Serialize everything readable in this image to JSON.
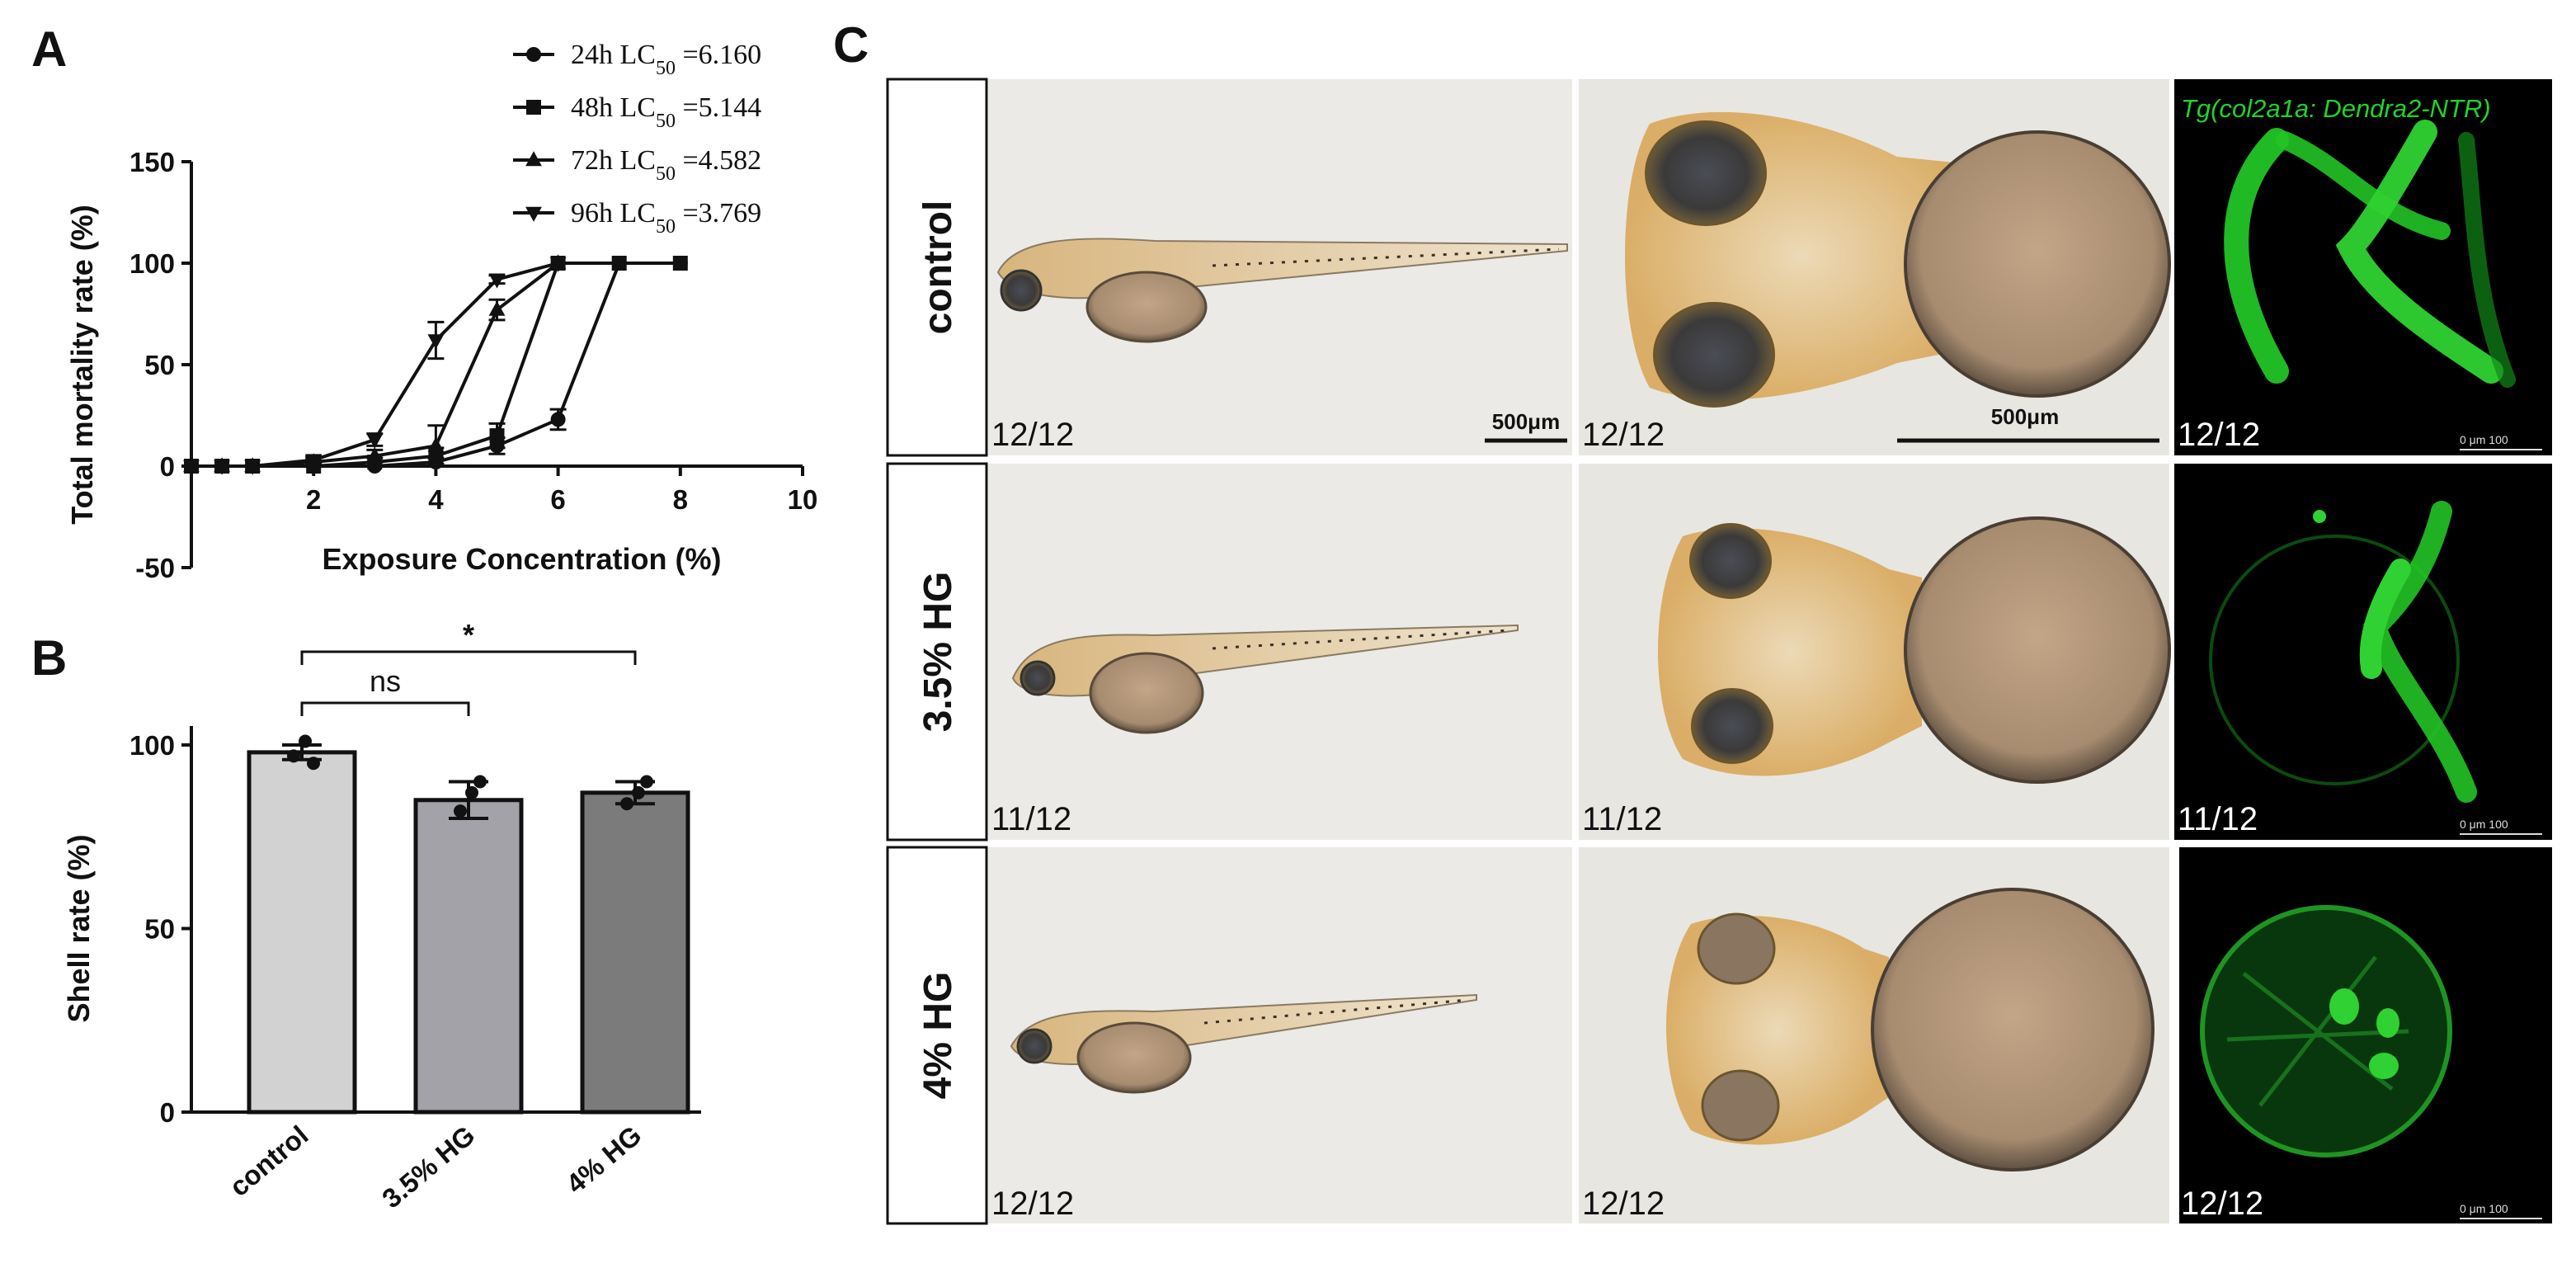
{
  "panels": {
    "a": "A",
    "b": "B",
    "c": "C"
  },
  "colors": {
    "axis": "#111111",
    "bar_control": "#d2d2d2",
    "bar_35": "#a2a2a8",
    "bar_4": "#7b7b7b",
    "fluorescence": "#22d22a"
  },
  "chart_data": [
    {
      "type": "line",
      "xlabel": "Exposure Concentration (%)",
      "ylabel": "Total mortality rate (%)",
      "xlim": [
        0,
        10
      ],
      "ylim": [
        -50,
        150
      ],
      "x_ticks": [
        "2",
        "4",
        "6",
        "8",
        "10"
      ],
      "y_ticks": [
        "-50",
        "0",
        "50",
        "100",
        "150"
      ],
      "grid": false,
      "legend_position": "top-right",
      "series": [
        {
          "legend_prefix": "24h LC",
          "legend_sub": "50",
          "legend_value": " =6.160",
          "marker": "circle",
          "x": [
            0,
            0.5,
            1,
            2,
            3,
            4,
            5,
            6,
            7,
            8
          ],
          "y": [
            0,
            0,
            0,
            0,
            0,
            2,
            10,
            23,
            100,
            100
          ],
          "err": [
            0,
            0,
            0,
            0,
            0,
            2,
            4,
            5,
            0,
            0
          ]
        },
        {
          "legend_prefix": "48h LC",
          "legend_sub": "50",
          "legend_value": " =5.144",
          "marker": "square",
          "x": [
            0,
            0.5,
            1,
            2,
            3,
            4,
            5,
            6,
            7,
            8
          ],
          "y": [
            0,
            0,
            0,
            0,
            2,
            5,
            15,
            100,
            100,
            100
          ],
          "err": [
            0,
            0,
            0,
            0,
            2,
            4,
            6,
            0,
            0,
            0
          ]
        },
        {
          "legend_prefix": "72h LC",
          "legend_sub": "50",
          "legend_value": " =4.582",
          "marker": "triangle-up",
          "x": [
            0,
            0.5,
            1,
            2,
            3,
            4,
            5,
            6
          ],
          "y": [
            0,
            0,
            0,
            2,
            5,
            10,
            77,
            100
          ],
          "err": [
            0,
            0,
            0,
            2,
            3,
            10,
            5,
            0
          ]
        },
        {
          "legend_prefix": "96h LC",
          "legend_sub": "50",
          "legend_value": " =3.769",
          "marker": "triangle-down",
          "x": [
            0,
            0.5,
            1,
            2,
            3,
            4,
            5,
            6
          ],
          "y": [
            0,
            0,
            0,
            3,
            13,
            62,
            92,
            100
          ],
          "err": [
            0,
            0,
            0,
            2,
            3,
            9,
            2,
            0
          ]
        }
      ]
    },
    {
      "type": "bar",
      "ylabel": "Shell rate (%)",
      "ylim": [
        0,
        110
      ],
      "y_ticks": [
        "0",
        "50",
        "100"
      ],
      "categories": [
        "control",
        "3.5% HG",
        "4%  HG"
      ],
      "values": [
        98,
        85,
        87
      ],
      "err": [
        2,
        5,
        3
      ],
      "points": [
        [
          97,
          101,
          95
        ],
        [
          82,
          87,
          90
        ],
        [
          84,
          87,
          90
        ]
      ],
      "significance": [
        {
          "label": "ns",
          "from": 0,
          "to": 1
        },
        {
          "label": "*",
          "from": 0,
          "to": 2
        }
      ]
    }
  ],
  "panel_c": {
    "rows": [
      {
        "label": "control",
        "ratios": [
          "12/12",
          "12/12",
          "12/12"
        ]
      },
      {
        "label": "3.5% HG",
        "ratios": [
          "11/12",
          "11/12",
          "11/12"
        ]
      },
      {
        "label": "4% HG",
        "ratios": [
          "12/12",
          "12/12",
          "12/12"
        ]
      }
    ],
    "scale_bar_1": "500μm",
    "scale_bar_2": "500μm",
    "fluor_label": "Tg(col2a1a: Dendra2-NTR)",
    "confocal_scale": "0 μm 100"
  }
}
